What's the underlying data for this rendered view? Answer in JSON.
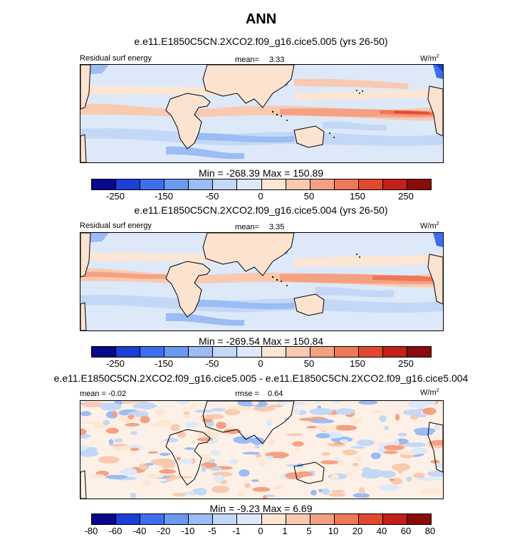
{
  "figure": {
    "title": "ANN"
  },
  "colors": {
    "cmap": [
      "#08088a",
      "#1c3fd6",
      "#3d6ef0",
      "#6c98f2",
      "#9bbcf4",
      "#c2d8f6",
      "#dde9f9",
      "#fde6d4",
      "#f9c9b0",
      "#f4a183",
      "#ee7858",
      "#e1492f",
      "#c0211a",
      "#8a0b0b"
    ],
    "land": "#fbe3d0",
    "ocean": "#dbe8f8",
    "coast": "#000000"
  },
  "chart_data": [
    {
      "type": "contour-map",
      "subtitle": "e.e11.E1850C5CN.2XCO2.f09_g16.cice5.005 (yrs 26-50)",
      "left_label": "Residual surf energy",
      "center_label": "mean=",
      "center_value": "3.33",
      "units_base": "W/m",
      "units_exp": "2",
      "min_label": "Min = -268.39 Max = 150.89",
      "min": -268.39,
      "max": 150.89,
      "mean": 3.33,
      "colorbar_ticks": [
        "-250",
        "-150",
        "-50",
        "0",
        "50",
        "150",
        "250"
      ],
      "colorbar_tick_positions": [
        1,
        3,
        5,
        7,
        9,
        11,
        13
      ]
    },
    {
      "type": "contour-map",
      "subtitle": "e.e11.E1850C5CN.2XCO2.f09_g16.cice5.004 (yrs 26-50)",
      "left_label": "Residual surf energy",
      "center_label": "mean=",
      "center_value": "3.35",
      "units_base": "W/m",
      "units_exp": "2",
      "min_label": "Min = -269.54 Max = 150.84",
      "min": -269.54,
      "max": 150.84,
      "mean": 3.35,
      "colorbar_ticks": [
        "-250",
        "-150",
        "-50",
        "0",
        "50",
        "150",
        "250"
      ],
      "colorbar_tick_positions": [
        1,
        3,
        5,
        7,
        9,
        11,
        13
      ]
    },
    {
      "type": "contour-map",
      "subtitle": "e.e11.E1850C5CN.2XCO2.f09_g16.cice5.005 - e.e11.E1850C5CN.2XCO2.f09_g16.cice5.004",
      "left_label": "mean = -0.02",
      "center_label": "rmse =",
      "center_value": "0.64",
      "units_base": "W/m",
      "units_exp": "2",
      "min_label": "Min =  -9.23 Max =   6.69",
      "min": -9.23,
      "max": 6.69,
      "mean": -0.02,
      "rmse": 0.64,
      "colorbar_ticks": [
        "-80",
        "-60",
        "-40",
        "-20",
        "-10",
        "-5",
        "-1",
        "0",
        "1",
        "5",
        "10",
        "20",
        "40",
        "60",
        "80"
      ],
      "colorbar_tick_positions": [
        0,
        1,
        2,
        3,
        4,
        5,
        6,
        7,
        8,
        9,
        10,
        11,
        12,
        13,
        14
      ]
    }
  ]
}
